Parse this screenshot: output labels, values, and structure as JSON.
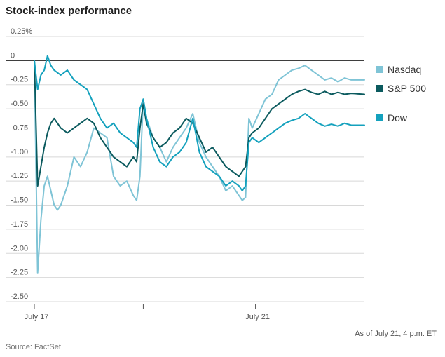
{
  "chart_data": {
    "type": "line",
    "title": "Stock-index performance",
    "ylim": [
      -2.5,
      0.25
    ],
    "y_ticks": [
      0.25,
      0,
      -0.25,
      -0.5,
      -0.75,
      -1.0,
      -1.25,
      -1.5,
      -1.75,
      -2.0,
      -2.25,
      -2.5
    ],
    "y_tick_labels": [
      "0.25%",
      "0",
      "-0.25",
      "-0.50",
      "-0.75",
      "-1.00",
      "-1.25",
      "-1.50",
      "-1.75",
      "-2.00",
      "-2.25",
      "-2.50"
    ],
    "x_ticks": [
      "July 17",
      "July 21"
    ],
    "xlim": [
      0,
      100
    ],
    "grid": true,
    "legend_position": "right",
    "footnote": "As of July 21, 4 p.m. ET",
    "source": "Source: FactSet",
    "series": [
      {
        "name": "Nasdaq",
        "color": "#7fc4d6",
        "points": [
          [
            0,
            0.0
          ],
          [
            1,
            -2.2
          ],
          [
            2,
            -1.65
          ],
          [
            3,
            -1.3
          ],
          [
            4,
            -1.2
          ],
          [
            5,
            -1.35
          ],
          [
            6,
            -1.5
          ],
          [
            7,
            -1.55
          ],
          [
            8,
            -1.5
          ],
          [
            10,
            -1.3
          ],
          [
            12,
            -1.0
          ],
          [
            14,
            -1.1
          ],
          [
            16,
            -0.95
          ],
          [
            18,
            -0.7
          ],
          [
            20,
            -0.75
          ],
          [
            22,
            -0.8
          ],
          [
            24,
            -1.2
          ],
          [
            26,
            -1.3
          ],
          [
            28,
            -1.25
          ],
          [
            30,
            -1.4
          ],
          [
            31,
            -1.45
          ],
          [
            32,
            -1.2
          ],
          [
            33,
            -0.4
          ],
          [
            34,
            -0.6
          ],
          [
            36,
            -0.8
          ],
          [
            38,
            -0.9
          ],
          [
            40,
            -1.05
          ],
          [
            42,
            -0.9
          ],
          [
            44,
            -0.8
          ],
          [
            46,
            -0.7
          ],
          [
            48,
            -0.55
          ],
          [
            50,
            -0.85
          ],
          [
            52,
            -1.0
          ],
          [
            54,
            -1.1
          ],
          [
            56,
            -1.2
          ],
          [
            58,
            -1.35
          ],
          [
            60,
            -1.3
          ],
          [
            62,
            -1.4
          ],
          [
            63,
            -1.45
          ],
          [
            64,
            -1.42
          ],
          [
            65,
            -0.6
          ],
          [
            66,
            -0.7
          ],
          [
            68,
            -0.55
          ],
          [
            70,
            -0.4
          ],
          [
            72,
            -0.35
          ],
          [
            74,
            -0.2
          ],
          [
            76,
            -0.15
          ],
          [
            78,
            -0.1
          ],
          [
            80,
            -0.08
          ],
          [
            82,
            -0.05
          ],
          [
            84,
            -0.1
          ],
          [
            86,
            -0.15
          ],
          [
            88,
            -0.2
          ],
          [
            90,
            -0.18
          ],
          [
            92,
            -0.22
          ],
          [
            94,
            -0.18
          ],
          [
            96,
            -0.2
          ],
          [
            100,
            -0.2
          ]
        ]
      },
      {
        "name": "S&P 500",
        "color": "#0b5a5e",
        "points": [
          [
            0,
            0.0
          ],
          [
            1,
            -1.3
          ],
          [
            2,
            -1.1
          ],
          [
            3,
            -0.9
          ],
          [
            4,
            -0.75
          ],
          [
            5,
            -0.65
          ],
          [
            6,
            -0.6
          ],
          [
            7,
            -0.65
          ],
          [
            8,
            -0.7
          ],
          [
            10,
            -0.75
          ],
          [
            12,
            -0.7
          ],
          [
            14,
            -0.65
          ],
          [
            16,
            -0.6
          ],
          [
            18,
            -0.65
          ],
          [
            20,
            -0.8
          ],
          [
            22,
            -0.9
          ],
          [
            24,
            -1.0
          ],
          [
            26,
            -1.05
          ],
          [
            28,
            -1.1
          ],
          [
            30,
            -1.0
          ],
          [
            31,
            -1.05
          ],
          [
            32,
            -0.7
          ],
          [
            33,
            -0.45
          ],
          [
            34,
            -0.65
          ],
          [
            36,
            -0.8
          ],
          [
            38,
            -0.9
          ],
          [
            40,
            -0.85
          ],
          [
            42,
            -0.75
          ],
          [
            44,
            -0.7
          ],
          [
            46,
            -0.6
          ],
          [
            48,
            -0.65
          ],
          [
            50,
            -0.8
          ],
          [
            52,
            -0.95
          ],
          [
            54,
            -0.9
          ],
          [
            56,
            -1.0
          ],
          [
            58,
            -1.1
          ],
          [
            60,
            -1.15
          ],
          [
            62,
            -1.2
          ],
          [
            63,
            -1.15
          ],
          [
            64,
            -1.1
          ],
          [
            65,
            -0.8
          ],
          [
            66,
            -0.75
          ],
          [
            68,
            -0.7
          ],
          [
            70,
            -0.6
          ],
          [
            72,
            -0.5
          ],
          [
            74,
            -0.45
          ],
          [
            76,
            -0.4
          ],
          [
            78,
            -0.35
          ],
          [
            80,
            -0.32
          ],
          [
            82,
            -0.3
          ],
          [
            84,
            -0.33
          ],
          [
            86,
            -0.35
          ],
          [
            88,
            -0.32
          ],
          [
            90,
            -0.35
          ],
          [
            92,
            -0.33
          ],
          [
            94,
            -0.35
          ],
          [
            96,
            -0.34
          ],
          [
            100,
            -0.35
          ]
        ]
      },
      {
        "name": "Dow",
        "color": "#14a1bd",
        "points": [
          [
            0,
            0.0
          ],
          [
            1,
            -0.3
          ],
          [
            2,
            -0.15
          ],
          [
            3,
            -0.1
          ],
          [
            4,
            0.05
          ],
          [
            5,
            -0.05
          ],
          [
            6,
            -0.1
          ],
          [
            8,
            -0.15
          ],
          [
            10,
            -0.1
          ],
          [
            12,
            -0.2
          ],
          [
            14,
            -0.25
          ],
          [
            16,
            -0.3
          ],
          [
            18,
            -0.45
          ],
          [
            20,
            -0.6
          ],
          [
            22,
            -0.7
          ],
          [
            24,
            -0.65
          ],
          [
            26,
            -0.75
          ],
          [
            28,
            -0.8
          ],
          [
            30,
            -0.85
          ],
          [
            31,
            -0.9
          ],
          [
            32,
            -0.5
          ],
          [
            33,
            -0.4
          ],
          [
            34,
            -0.6
          ],
          [
            36,
            -0.9
          ],
          [
            38,
            -1.05
          ],
          [
            40,
            -1.1
          ],
          [
            42,
            -1.0
          ],
          [
            44,
            -0.95
          ],
          [
            46,
            -0.85
          ],
          [
            48,
            -0.6
          ],
          [
            50,
            -0.95
          ],
          [
            52,
            -1.1
          ],
          [
            54,
            -1.15
          ],
          [
            56,
            -1.2
          ],
          [
            58,
            -1.3
          ],
          [
            60,
            -1.25
          ],
          [
            62,
            -1.3
          ],
          [
            63,
            -1.35
          ],
          [
            64,
            -1.3
          ],
          [
            65,
            -0.85
          ],
          [
            66,
            -0.8
          ],
          [
            68,
            -0.85
          ],
          [
            70,
            -0.8
          ],
          [
            72,
            -0.75
          ],
          [
            74,
            -0.7
          ],
          [
            76,
            -0.65
          ],
          [
            78,
            -0.62
          ],
          [
            80,
            -0.6
          ],
          [
            82,
            -0.55
          ],
          [
            84,
            -0.6
          ],
          [
            86,
            -0.65
          ],
          [
            88,
            -0.68
          ],
          [
            90,
            -0.66
          ],
          [
            92,
            -0.68
          ],
          [
            94,
            -0.65
          ],
          [
            96,
            -0.67
          ],
          [
            100,
            -0.67
          ]
        ]
      }
    ]
  }
}
